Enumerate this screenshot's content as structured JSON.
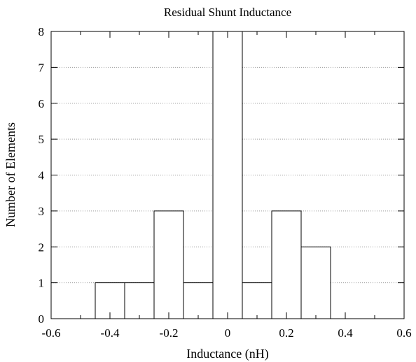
{
  "chart_data": {
    "type": "bar",
    "title": "Residual Shunt Inductance",
    "xlabel": "Inductance (nH)",
    "ylabel": "Number of Elements",
    "xlim": [
      -0.6,
      0.6
    ],
    "ylim": [
      0,
      8
    ],
    "x_ticks": [
      "-0.6",
      "-0.4",
      "-0.2",
      "0",
      "0.2",
      "0.4",
      "0.6"
    ],
    "y_ticks": [
      "0",
      "1",
      "2",
      "3",
      "4",
      "5",
      "6",
      "7",
      "8"
    ],
    "grid": "horizontal dotted",
    "bins": [
      {
        "start": -0.45,
        "end": -0.35,
        "count": 1
      },
      {
        "start": -0.35,
        "end": -0.25,
        "count": 1
      },
      {
        "start": -0.25,
        "end": -0.15,
        "count": 3
      },
      {
        "start": -0.15,
        "end": -0.05,
        "count": 1
      },
      {
        "start": -0.05,
        "end": 0.05,
        "count": 8
      },
      {
        "start": 0.05,
        "end": 0.15,
        "count": 1
      },
      {
        "start": 0.15,
        "end": 0.25,
        "count": 3
      },
      {
        "start": 0.25,
        "end": 0.35,
        "count": 2
      }
    ],
    "bar_fill": "#ffffff",
    "bar_stroke": "#000000",
    "grid_color": "#9a9a9a"
  }
}
